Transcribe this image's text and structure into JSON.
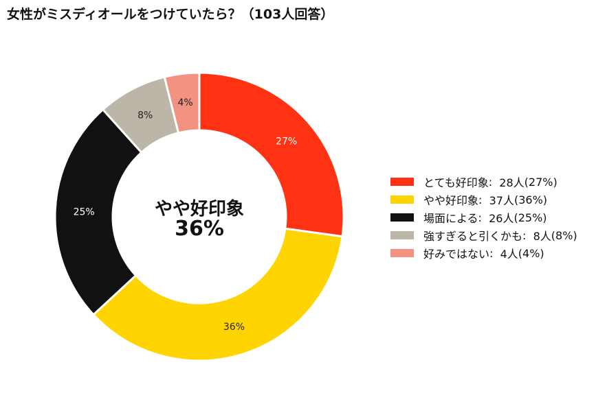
{
  "chart_data": {
    "type": "pie",
    "title": "女性がミスディオールをつけていたら？（103人回答）",
    "total_label": "103人回答",
    "center": {
      "name": "やや好印象",
      "percent_label": "36%"
    },
    "slices": [
      {
        "name": "とても好印象",
        "count": 28,
        "count_label": "28人",
        "percent": 27,
        "percent_label": "27%",
        "color": "#FF3314",
        "label_color": "#ffffff"
      },
      {
        "name": "やや好印象",
        "count": 37,
        "count_label": "37人",
        "percent": 36,
        "percent_label": "36%",
        "color": "#FFD400",
        "label_color": "#222222"
      },
      {
        "name": "場面による",
        "count": 26,
        "count_label": "26人",
        "percent": 25,
        "percent_label": "25%",
        "color": "#111111",
        "label_color": "#ffffff"
      },
      {
        "name": "強すぎると引くかも",
        "count": 8,
        "count_label": "8人",
        "percent": 8,
        "percent_label": "8%",
        "color": "#BBB6A8",
        "label_color": "#222222"
      },
      {
        "name": "好みではない",
        "count": 4,
        "count_label": "4人",
        "percent": 4,
        "percent_label": "4%",
        "color": "#F29382",
        "label_color": "#222222"
      }
    ],
    "legend_position": "right",
    "grid": false
  }
}
